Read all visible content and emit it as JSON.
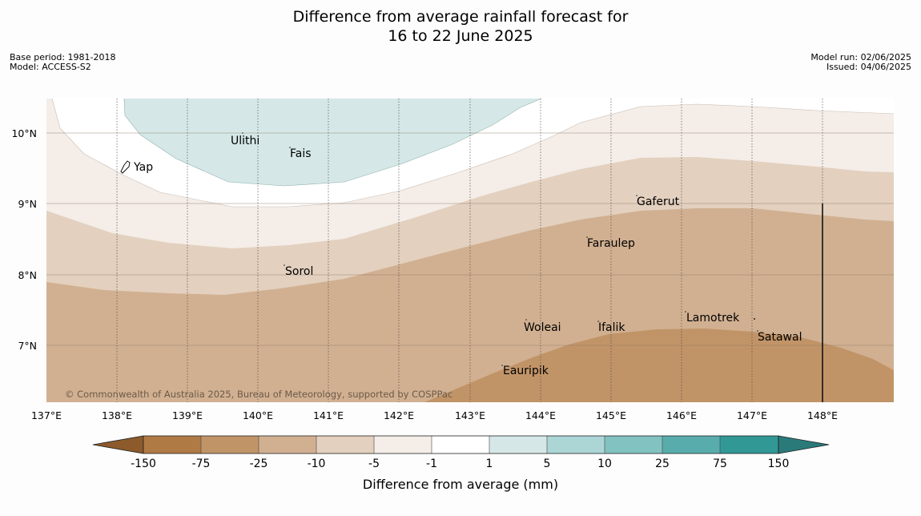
{
  "title": {
    "line1": "Difference from average rainfall forecast for",
    "line2": "16 to 22 June 2025"
  },
  "meta_left": {
    "base_period": "Base period: 1981-2018",
    "model": "Model: ACCESS-S2"
  },
  "meta_right": {
    "model_run": "Model run: 02/06/2025",
    "issued": "Issued: 04/06/2025"
  },
  "map": {
    "lon_ticks": [
      "137°E",
      "138°E",
      "139°E",
      "140°E",
      "141°E",
      "142°E",
      "143°E",
      "144°E",
      "145°E",
      "146°E",
      "147°E",
      "148°E"
    ],
    "lat_ticks": [
      "10°N",
      "9°N",
      "8°N",
      "7°N"
    ],
    "places": [
      "Ulithi",
      "Fais",
      "Yap",
      "Gaferut",
      "Faraulep",
      "Sorol",
      "Woleai",
      "Ifalik",
      "Lamotrek",
      "Satawal",
      "Eauripik"
    ],
    "copyright": "© Commonwealth of Australia 2025, Bureau of Meteorology, supported by COSPPac"
  },
  "colorbar": {
    "title": "Difference from average (mm)",
    "ticks": [
      "-150",
      "-75",
      "-25",
      "-10",
      "-5",
      "-1",
      "1",
      "5",
      "10",
      "25",
      "75",
      "150"
    ],
    "colors": {
      "below_-150": "#8c5a2b",
      "-150_-75": "#b07a45",
      "-75_-25": "#c19468",
      "-25_-10": "#d1b091",
      "-10_-5": "#e3d0be",
      "-5_-1": "#f4ede8",
      "-1_1": "#ffffff",
      "1_5": "#d5e8e7",
      "5_10": "#acd5d6",
      "10_25": "#82c2c1",
      "25_75": "#58adac",
      "75_150": "#319896",
      "above_150": "#2a7a7a"
    }
  }
}
